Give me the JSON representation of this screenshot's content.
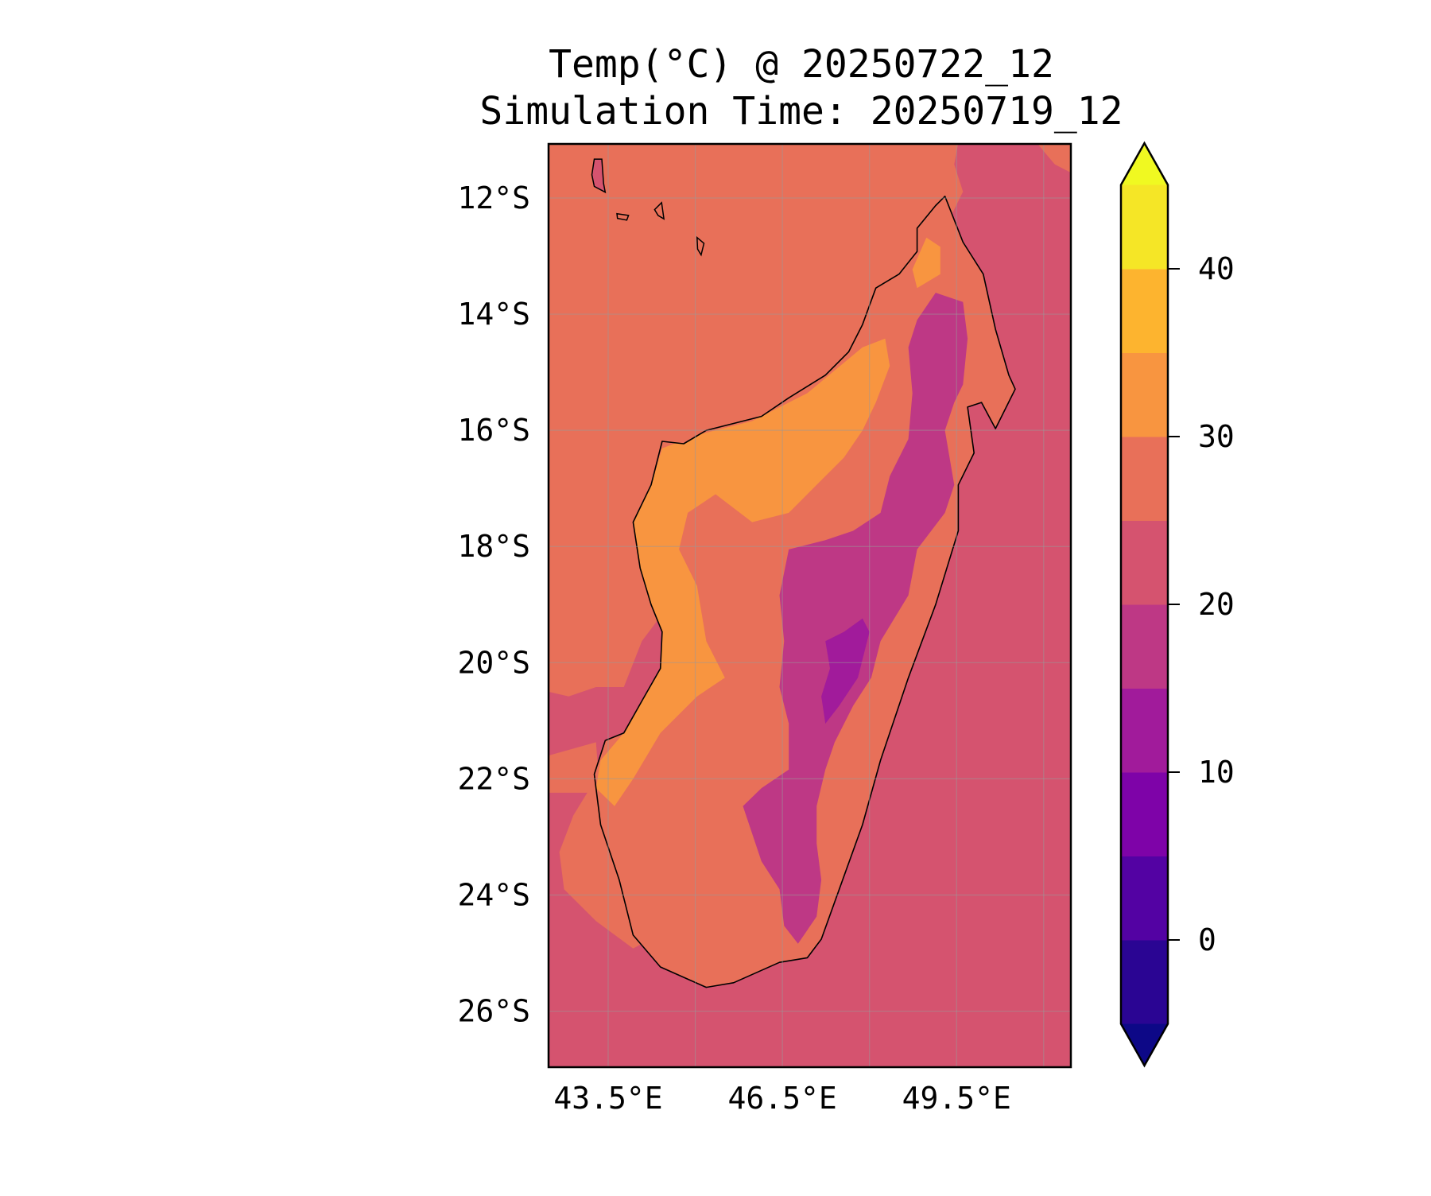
{
  "chart_data": {
    "type": "heatmap",
    "title": "Temp(°C) @ 20250722_12",
    "subtitle": "Simulation Time: 20250719_12",
    "xlabel": "",
    "ylabel": "",
    "lon_range": [
      42.47,
      51.48
    ],
    "lat_range_south": [
      11.05,
      26.94
    ],
    "grid": true,
    "lon_gridlines": [
      43.5,
      45,
      46.5,
      48,
      49.5,
      51
    ],
    "lat_gridlines": [
      12,
      14,
      16,
      18,
      20,
      22,
      24,
      26
    ],
    "x_ticks": [
      {
        "value": 43.5,
        "label": "43.5°E"
      },
      {
        "value": 46.5,
        "label": "46.5°E"
      },
      {
        "value": 49.5,
        "label": "49.5°E"
      }
    ],
    "y_ticks": [
      {
        "value": 12,
        "label": "12°S"
      },
      {
        "value": 14,
        "label": "14°S"
      },
      {
        "value": 16,
        "label": "16°S"
      },
      {
        "value": 18,
        "label": "18°S"
      },
      {
        "value": 20,
        "label": "20°S"
      },
      {
        "value": 22,
        "label": "22°S"
      },
      {
        "value": 24,
        "label": "24°S"
      },
      {
        "value": 26,
        "label": "26°S"
      }
    ],
    "colorbar": {
      "colormap": "plasma",
      "levels": [
        -5,
        0,
        5,
        10,
        15,
        20,
        25,
        30,
        35,
        40,
        45
      ],
      "band_colors": [
        "#2a0593",
        "#5302a3",
        "#7e03a8",
        "#a11b9b",
        "#be3885",
        "#d5536f",
        "#e87059",
        "#f89540",
        "#fdb42f",
        "#f5e626"
      ],
      "under_color": "#0d0887",
      "over_color": "#f0f921",
      "extend": "both",
      "ticks": [
        {
          "value": 0,
          "label": "0"
        },
        {
          "value": 10,
          "label": "10"
        },
        {
          "value": 20,
          "label": "20"
        },
        {
          "value": 30,
          "label": "30"
        },
        {
          "value": 40,
          "label": "40"
        }
      ]
    },
    "background_level": 22.5,
    "regions": [
      {
        "name": "ocean-warm-northwest",
        "level": 27.5,
        "clip": "none",
        "points": [
          [
            42.47,
            11.05
          ],
          [
            49.53,
            11.05
          ],
          [
            49.46,
            11.42
          ],
          [
            49.61,
            11.89
          ],
          [
            49.38,
            12.36
          ],
          [
            48.82,
            13.31
          ],
          [
            44.08,
            19.63
          ],
          [
            43.77,
            20.42
          ],
          [
            43.29,
            20.42
          ],
          [
            42.82,
            20.58
          ],
          [
            42.47,
            20.5
          ]
        ]
      },
      {
        "name": "ocean-warm-southwest",
        "level": 27.5,
        "clip": "none",
        "points": [
          [
            42.47,
            21.6
          ],
          [
            43.29,
            21.37
          ],
          [
            43.37,
            22.47
          ],
          [
            43.77,
            23.74
          ],
          [
            44.08,
            24.84
          ],
          [
            43.93,
            24.92
          ],
          [
            43.29,
            24.45
          ],
          [
            42.74,
            23.9
          ],
          [
            42.66,
            23.26
          ],
          [
            42.9,
            22.63
          ],
          [
            43.14,
            22.24
          ],
          [
            42.47,
            22.24
          ]
        ]
      },
      {
        "name": "ocean-warm-northeast-corner",
        "level": 27.5,
        "clip": "none",
        "points": [
          [
            50.88,
            11.05
          ],
          [
            51.48,
            11.05
          ],
          [
            51.48,
            11.57
          ],
          [
            51.19,
            11.42
          ]
        ]
      },
      {
        "name": "land",
        "level": 27.5,
        "clip": "none",
        "coast": true
      },
      {
        "name": "land-hot-west",
        "level": 32.5,
        "clip": "land",
        "points": [
          [
            44.43,
            16.31
          ],
          [
            45.03,
            16.08
          ],
          [
            45.98,
            15.84
          ],
          [
            46.93,
            15.36
          ],
          [
            47.88,
            14.57
          ],
          [
            48.27,
            14.42
          ],
          [
            48.35,
            14.89
          ],
          [
            48.11,
            15.52
          ],
          [
            47.88,
            16.0
          ],
          [
            47.56,
            16.47
          ],
          [
            47.09,
            16.94
          ],
          [
            46.61,
            17.42
          ],
          [
            45.98,
            17.58
          ],
          [
            45.35,
            17.1
          ],
          [
            44.87,
            17.42
          ],
          [
            44.72,
            18.05
          ],
          [
            45.03,
            18.68
          ],
          [
            45.19,
            19.63
          ],
          [
            45.51,
            20.26
          ],
          [
            45.03,
            20.58
          ],
          [
            44.4,
            21.21
          ],
          [
            43.93,
            22.0
          ],
          [
            43.61,
            22.47
          ],
          [
            43.29,
            22.16
          ],
          [
            43.37,
            21.68
          ],
          [
            43.77,
            21.21
          ],
          [
            44.08,
            20.66
          ],
          [
            44.4,
            20.1
          ],
          [
            44.43,
            19.47
          ],
          [
            44.24,
            19.0
          ],
          [
            44.05,
            18.37
          ],
          [
            43.93,
            17.58
          ],
          [
            44.24,
            16.94
          ]
        ]
      },
      {
        "name": "land-hot-north-tip",
        "level": 32.5,
        "clip": "land",
        "points": [
          [
            48.98,
            12.68
          ],
          [
            49.22,
            12.84
          ],
          [
            49.22,
            13.31
          ],
          [
            48.82,
            13.55
          ],
          [
            48.74,
            13.23
          ]
        ]
      },
      {
        "name": "land-cool-highlands",
        "level": 17.5,
        "clip": "land",
        "points": [
          [
            49.14,
            13.63
          ],
          [
            49.61,
            13.79
          ],
          [
            49.69,
            14.42
          ],
          [
            49.61,
            15.21
          ],
          [
            49.46,
            15.52
          ],
          [
            49.3,
            16.0
          ],
          [
            49.46,
            16.94
          ],
          [
            49.3,
            17.42
          ],
          [
            48.82,
            18.05
          ],
          [
            48.67,
            18.84
          ],
          [
            48.19,
            19.63
          ],
          [
            48.03,
            20.26
          ],
          [
            47.72,
            20.74
          ],
          [
            47.4,
            21.37
          ],
          [
            47.24,
            21.84
          ],
          [
            47.09,
            22.47
          ],
          [
            47.09,
            23.11
          ],
          [
            47.17,
            23.74
          ],
          [
            47.09,
            24.37
          ],
          [
            46.77,
            24.84
          ],
          [
            46.53,
            24.53
          ],
          [
            46.45,
            23.9
          ],
          [
            46.14,
            23.42
          ],
          [
            45.82,
            22.47
          ],
          [
            46.14,
            22.16
          ],
          [
            46.61,
            21.84
          ],
          [
            46.61,
            21.05
          ],
          [
            46.45,
            20.42
          ],
          [
            46.53,
            19.63
          ],
          [
            46.45,
            18.84
          ],
          [
            46.61,
            18.05
          ],
          [
            47.24,
            17.89
          ],
          [
            47.72,
            17.73
          ],
          [
            48.19,
            17.42
          ],
          [
            48.35,
            16.79
          ],
          [
            48.67,
            16.15
          ],
          [
            48.74,
            15.36
          ],
          [
            48.67,
            14.57
          ],
          [
            48.82,
            14.1
          ]
        ]
      },
      {
        "name": "land-cold-core",
        "level": 12.5,
        "clip": "land",
        "points": [
          [
            47.88,
            19.24
          ],
          [
            48.0,
            19.47
          ],
          [
            47.8,
            20.26
          ],
          [
            47.48,
            20.74
          ],
          [
            47.24,
            21.05
          ],
          [
            47.17,
            20.58
          ],
          [
            47.32,
            20.1
          ],
          [
            47.24,
            19.63
          ],
          [
            47.56,
            19.47
          ]
        ]
      }
    ],
    "coastline": [
      [
        49.3,
        11.97
      ],
      [
        49.61,
        12.76
      ],
      [
        49.96,
        13.31
      ],
      [
        50.17,
        14.26
      ],
      [
        50.4,
        15.05
      ],
      [
        50.51,
        15.29
      ],
      [
        50.17,
        15.97
      ],
      [
        49.93,
        15.52
      ],
      [
        49.69,
        15.6
      ],
      [
        49.8,
        16.39
      ],
      [
        49.53,
        16.94
      ],
      [
        49.53,
        17.73
      ],
      [
        49.14,
        19.0
      ],
      [
        48.67,
        20.26
      ],
      [
        48.19,
        21.68
      ],
      [
        47.88,
        22.79
      ],
      [
        47.48,
        23.9
      ],
      [
        47.17,
        24.76
      ],
      [
        46.93,
        25.08
      ],
      [
        46.45,
        25.16
      ],
      [
        45.66,
        25.51
      ],
      [
        45.19,
        25.59
      ],
      [
        44.4,
        25.24
      ],
      [
        43.93,
        24.69
      ],
      [
        43.69,
        23.74
      ],
      [
        43.37,
        22.79
      ],
      [
        43.26,
        21.92
      ],
      [
        43.45,
        21.34
      ],
      [
        43.77,
        21.21
      ],
      [
        44.08,
        20.66
      ],
      [
        44.4,
        20.1
      ],
      [
        44.43,
        19.47
      ],
      [
        44.24,
        19.0
      ],
      [
        44.05,
        18.37
      ],
      [
        43.93,
        17.58
      ],
      [
        44.24,
        16.94
      ],
      [
        44.43,
        16.19
      ],
      [
        44.8,
        16.23
      ],
      [
        45.19,
        16.0
      ],
      [
        46.14,
        15.76
      ],
      [
        46.61,
        15.44
      ],
      [
        47.24,
        15.05
      ],
      [
        47.64,
        14.65
      ],
      [
        47.88,
        14.18
      ],
      [
        48.11,
        13.55
      ],
      [
        48.51,
        13.31
      ],
      [
        48.82,
        12.92
      ],
      [
        48.82,
        12.52
      ],
      [
        49.14,
        12.13
      ]
    ],
    "islands": [
      {
        "level": 22.5,
        "points": [
          [
            43.26,
            11.33
          ],
          [
            43.39,
            11.33
          ],
          [
            43.42,
            11.75
          ],
          [
            43.45,
            11.9
          ],
          [
            43.26,
            11.8
          ],
          [
            43.22,
            11.6
          ]
        ]
      },
      {
        "level": 27.5,
        "points": [
          [
            43.65,
            12.27
          ],
          [
            43.85,
            12.3
          ],
          [
            43.82,
            12.38
          ],
          [
            43.66,
            12.35
          ]
        ]
      },
      {
        "level": 27.5,
        "points": [
          [
            44.3,
            12.2
          ],
          [
            44.42,
            12.08
          ],
          [
            44.46,
            12.36
          ],
          [
            44.36,
            12.3
          ]
        ]
      },
      {
        "level": 27.5,
        "points": [
          [
            45.03,
            12.68
          ],
          [
            45.15,
            12.78
          ],
          [
            45.1,
            12.98
          ],
          [
            45.04,
            12.88
          ]
        ]
      }
    ]
  }
}
